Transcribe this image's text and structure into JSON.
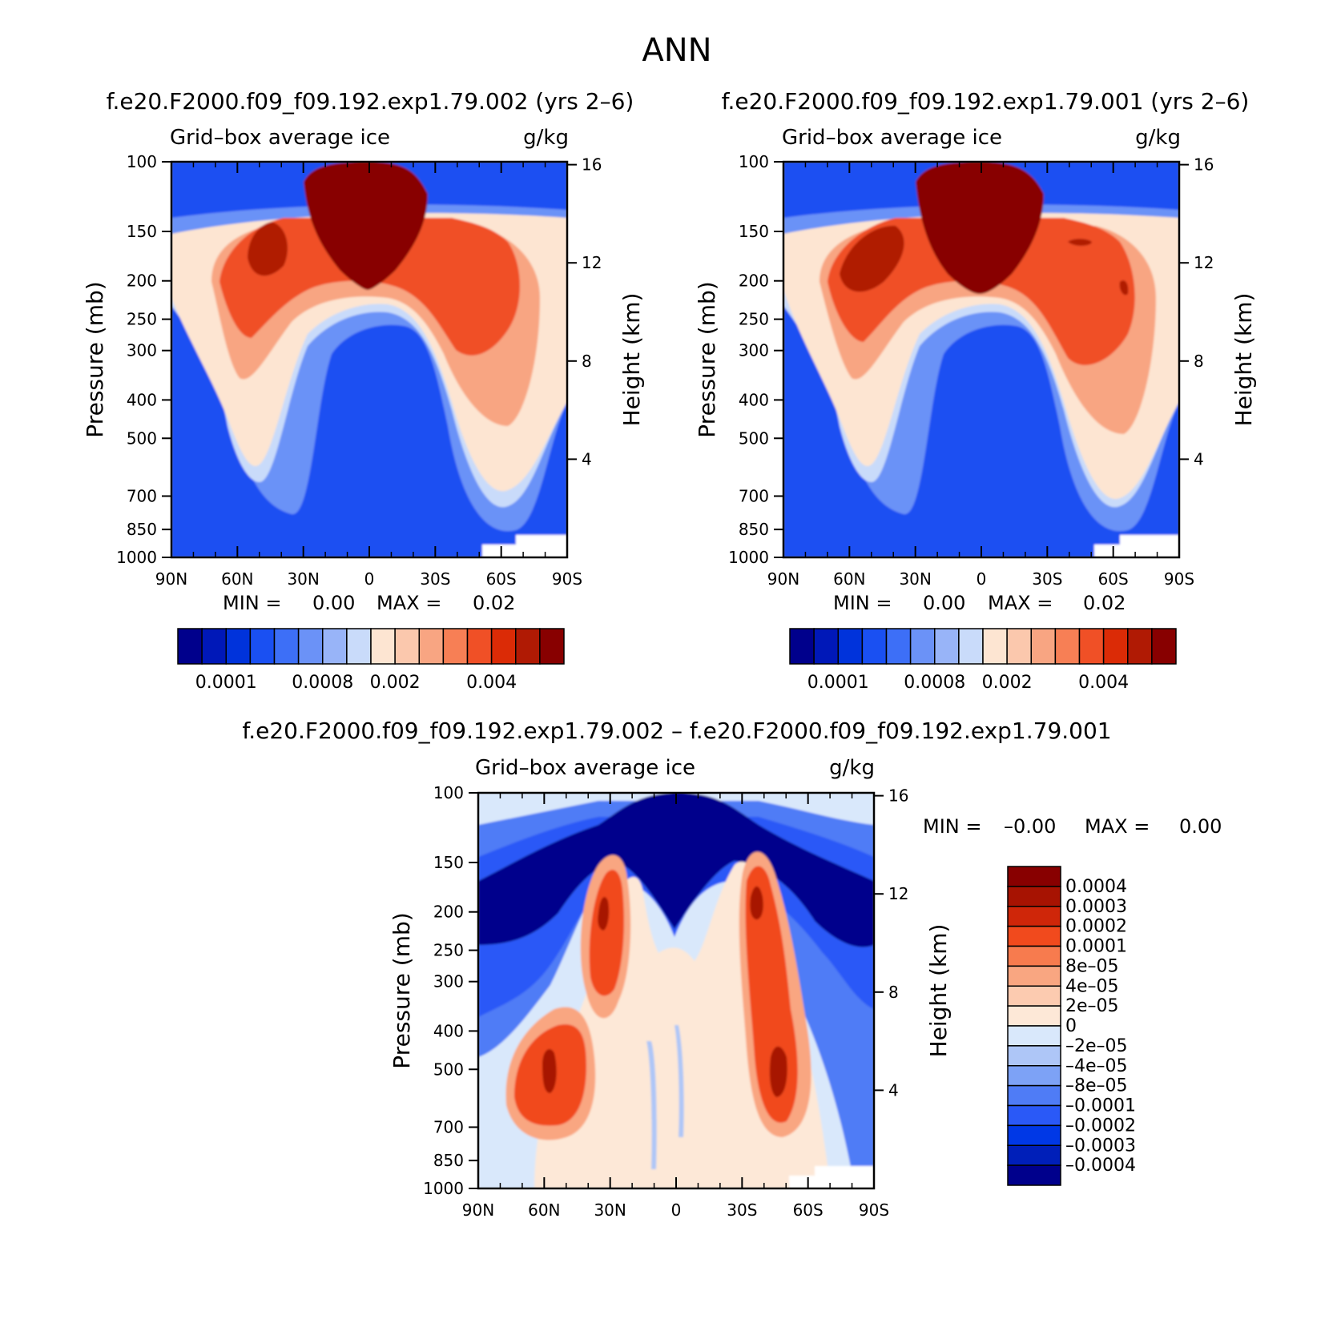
{
  "figure_title": "ANN",
  "colors": {
    "abs_levels": [
      "#00008c",
      "#0018b8",
      "#0033db",
      "#1a50f2",
      "#3d6ff7",
      "#6b92f7",
      "#98b4f8",
      "#c9dbfa",
      "#fde5d2",
      "#fbc8ad",
      "#f8a582",
      "#f77f55",
      "#f05026",
      "#db2b06",
      "#b01a04",
      "#880000"
    ],
    "diff_levels": [
      "#00008c",
      "#001fb9",
      "#0038e6",
      "#2a59f7",
      "#4f7cf6",
      "#7da2f6",
      "#aec6f7",
      "#d9e8fb",
      "#fde8d7",
      "#fccbb0",
      "#f9a681",
      "#f77b4e",
      "#f14a1d",
      "#cf2609",
      "#a71302",
      "#880000"
    ]
  },
  "chart_data": [
    {
      "type": "heatmap",
      "panel": "left",
      "title": "f.e20.F2000.f09_f09.192.exp1.79.002 (yrs 2–6)",
      "subtitle_left": "Grid–box average ice",
      "subtitle_right": "g/kg",
      "xlabel": "",
      "ylabel": "Pressure (mb)",
      "y2label": "Height (km)",
      "x_ticks": [
        "90N",
        "60N",
        "30N",
        "0",
        "30S",
        "60S",
        "90S"
      ],
      "y_ticks": [
        "100",
        "150",
        "200",
        "250",
        "300",
        "400",
        "500",
        "700",
        "850",
        "1000"
      ],
      "y2_ticks": [
        "16",
        "12",
        "8",
        "4"
      ],
      "minmax_text": {
        "min_label": "MIN =",
        "min_value": "0.00",
        "max_label": "MAX =",
        "max_value": "0.02"
      },
      "colorbar_labels": [
        "0.0001",
        "0.0008",
        "0.002",
        "0.004"
      ],
      "levels": 16
    },
    {
      "type": "heatmap",
      "panel": "right",
      "title": "f.e20.F2000.f09_f09.192.exp1.79.001 (yrs 2–6)",
      "subtitle_left": "Grid–box average ice",
      "subtitle_right": "g/kg",
      "xlabel": "",
      "ylabel": "Pressure (mb)",
      "y2label": "Height (km)",
      "x_ticks": [
        "90N",
        "60N",
        "30N",
        "0",
        "30S",
        "60S",
        "90S"
      ],
      "y_ticks": [
        "100",
        "150",
        "200",
        "250",
        "300",
        "400",
        "500",
        "700",
        "850",
        "1000"
      ],
      "y2_ticks": [
        "16",
        "12",
        "8",
        "4"
      ],
      "minmax_text": {
        "min_label": "MIN =",
        "min_value": "0.00",
        "max_label": "MAX =",
        "max_value": "0.02"
      },
      "colorbar_labels": [
        "0.0001",
        "0.0008",
        "0.002",
        "0.004"
      ],
      "levels": 16
    },
    {
      "type": "heatmap",
      "panel": "bottom",
      "title": "f.e20.F2000.f09_f09.192.exp1.79.002 – f.e20.F2000.f09_f09.192.exp1.79.001",
      "subtitle_left": "Grid–box average ice",
      "subtitle_right": "g/kg",
      "xlabel": "",
      "ylabel": "Pressure (mb)",
      "y2label": "Height (km)",
      "x_ticks": [
        "90N",
        "60N",
        "30N",
        "0",
        "30S",
        "60S",
        "90S"
      ],
      "y_ticks": [
        "100",
        "150",
        "200",
        "250",
        "300",
        "400",
        "500",
        "700",
        "850",
        "1000"
      ],
      "y2_ticks": [
        "16",
        "12",
        "8",
        "4"
      ],
      "minmax_text": {
        "min_label": "MIN =",
        "min_value": "–0.00",
        "max_label": "MAX =",
        "max_value": "0.00"
      },
      "colorbar_labels": [
        "0.0004",
        "0.0003",
        "0.0002",
        "0.0001",
        "8e–05",
        "4e–05",
        "2e–05",
        "0",
        "–2e–05",
        "–4e–05",
        "–8e–05",
        "–0.0001",
        "–0.0002",
        "–0.0003",
        "–0.0004"
      ],
      "levels": 16
    }
  ]
}
